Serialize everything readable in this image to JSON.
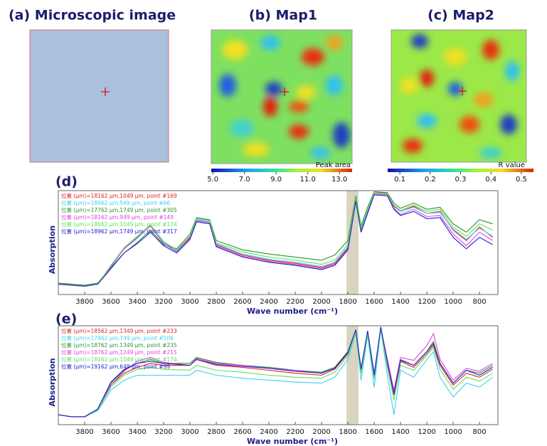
{
  "chart_data": [
    {
      "type": "image",
      "title": "(a) Microscopic image"
    },
    {
      "type": "heatmap",
      "title": "(b) Map1",
      "colorbar_label": "Peak area",
      "clim": [
        4.9,
        13.8
      ],
      "cticks": [
        {
          "value": 5,
          "label": "5.0"
        },
        {
          "value": 7,
          "label": "7.0"
        },
        {
          "value": 9,
          "label": "9.0"
        },
        {
          "value": 11,
          "label": "11.0"
        },
        {
          "value": 13,
          "label": "13.0"
        }
      ]
    },
    {
      "type": "heatmap",
      "title": "(c) Map2",
      "colorbar_label": "R value",
      "clim": [
        0.06,
        0.54
      ],
      "cticks": [
        0.1,
        0.2,
        0.3,
        0.4,
        0.5
      ]
    },
    {
      "type": "line",
      "panel_label": "(d)",
      "xlabel": "Wave number (cm⁻¹)",
      "ylabel": "Absorption",
      "xlim": [
        4000,
        660
      ],
      "ylim": [
        0,
        1
      ],
      "xticks": [
        3800,
        3600,
        3400,
        3200,
        3000,
        2800,
        2600,
        2400,
        2200,
        2000,
        1800,
        1600,
        1400,
        1200,
        1000,
        800
      ],
      "highlight": [
        1810,
        1720
      ],
      "highlight_color": "#d8d4bf",
      "x": [
        4000,
        3800,
        3700,
        3600,
        3500,
        3400,
        3300,
        3200,
        3100,
        3000,
        2950,
        2850,
        2800,
        2600,
        2400,
        2200,
        2000,
        1900,
        1800,
        1740,
        1700,
        1650,
        1600,
        1500,
        1450,
        1400,
        1300,
        1200,
        1100,
        1000,
        900,
        800,
        700
      ],
      "series": [
        {
          "name": "位置 (μm)=18162 μm,1049 μm, point #169",
          "color": "#e02020",
          "values": [
            0.1,
            0.08,
            0.1,
            0.28,
            0.45,
            0.55,
            0.66,
            0.5,
            0.42,
            0.55,
            0.72,
            0.7,
            0.48,
            0.38,
            0.33,
            0.3,
            0.26,
            0.3,
            0.45,
            0.92,
            0.62,
            0.8,
            0.98,
            0.98,
            0.85,
            0.8,
            0.85,
            0.78,
            0.8,
            0.62,
            0.52,
            0.65,
            0.55
          ]
        },
        {
          "name": "位置 (μm)=18062 μm,549 μm, point #66",
          "color": "#3fcff0",
          "values": [
            0.1,
            0.08,
            0.1,
            0.27,
            0.44,
            0.54,
            0.67,
            0.5,
            0.42,
            0.56,
            0.72,
            0.7,
            0.49,
            0.39,
            0.34,
            0.31,
            0.27,
            0.31,
            0.46,
            0.93,
            0.63,
            0.81,
            0.98,
            0.97,
            0.86,
            0.8,
            0.84,
            0.78,
            0.79,
            0.63,
            0.53,
            0.64,
            0.56
          ]
        },
        {
          "name": "位置 (μm)=17762 μm,1749 μm, point #305",
          "color": "#2a962a",
          "values": [
            0.11,
            0.09,
            0.11,
            0.26,
            0.4,
            0.5,
            0.62,
            0.48,
            0.44,
            0.58,
            0.74,
            0.72,
            0.52,
            0.43,
            0.39,
            0.36,
            0.33,
            0.38,
            0.52,
            0.95,
            0.66,
            0.84,
            0.99,
            0.98,
            0.88,
            0.83,
            0.88,
            0.82,
            0.84,
            0.68,
            0.6,
            0.72,
            0.68
          ]
        },
        {
          "name": "位置 (μm)=18162 μm,949 μm, point #149",
          "color": "#e040e0",
          "values": [
            0.1,
            0.08,
            0.1,
            0.27,
            0.44,
            0.55,
            0.66,
            0.49,
            0.41,
            0.54,
            0.71,
            0.69,
            0.47,
            0.37,
            0.32,
            0.29,
            0.25,
            0.29,
            0.44,
            0.91,
            0.6,
            0.79,
            0.97,
            0.96,
            0.83,
            0.77,
            0.82,
            0.75,
            0.76,
            0.58,
            0.47,
            0.6,
            0.52
          ]
        },
        {
          "name": "位置 (μm)=18662 μm,1049 μm, point #174",
          "color": "#5ee05e",
          "values": [
            0.1,
            0.08,
            0.1,
            0.28,
            0.45,
            0.56,
            0.67,
            0.51,
            0.43,
            0.56,
            0.73,
            0.71,
            0.5,
            0.41,
            0.36,
            0.33,
            0.29,
            0.33,
            0.48,
            0.93,
            0.64,
            0.82,
            0.98,
            0.97,
            0.86,
            0.81,
            0.86,
            0.8,
            0.82,
            0.65,
            0.56,
            0.68,
            0.62
          ]
        },
        {
          "name": "位置 (μm)=18962 μm,1749 μm, point #317",
          "color": "#2020d0",
          "values": [
            0.1,
            0.08,
            0.1,
            0.25,
            0.4,
            0.49,
            0.6,
            0.47,
            0.4,
            0.53,
            0.7,
            0.68,
            0.46,
            0.36,
            0.31,
            0.28,
            0.24,
            0.28,
            0.43,
            0.9,
            0.6,
            0.78,
            0.96,
            0.95,
            0.82,
            0.76,
            0.8,
            0.73,
            0.74,
            0.55,
            0.44,
            0.55,
            0.48
          ]
        }
      ]
    },
    {
      "type": "line",
      "panel_label": "(e)",
      "xlabel": "Wave number (cm⁻¹)",
      "ylabel": "Absorption",
      "xlim": [
        4000,
        660
      ],
      "ylim": [
        0,
        1
      ],
      "xticks": [
        3800,
        3600,
        3400,
        3200,
        3000,
        2800,
        2600,
        2400,
        2200,
        2000,
        1800,
        1600,
        1400,
        1200,
        1000,
        800
      ],
      "highlight": [
        1810,
        1720
      ],
      "highlight_color": "#d8d4bf",
      "x": [
        4000,
        3900,
        3800,
        3700,
        3600,
        3500,
        3400,
        3300,
        3200,
        3000,
        2950,
        2800,
        2600,
        2400,
        2200,
        2000,
        1900,
        1800,
        1740,
        1700,
        1650,
        1600,
        1550,
        1500,
        1450,
        1400,
        1300,
        1200,
        1150,
        1100,
        1000,
        900,
        800,
        700
      ],
      "series": [
        {
          "name": "位置 (μm)=18562 μm,1349 μm, point #233",
          "color": "#e02020",
          "values": [
            0.1,
            0.08,
            0.08,
            0.15,
            0.4,
            0.52,
            0.58,
            0.62,
            0.6,
            0.6,
            0.66,
            0.6,
            0.58,
            0.55,
            0.52,
            0.5,
            0.56,
            0.72,
            0.95,
            0.55,
            0.93,
            0.5,
            0.98,
            0.62,
            0.3,
            0.64,
            0.58,
            0.72,
            0.8,
            0.6,
            0.4,
            0.52,
            0.48,
            0.56
          ]
        },
        {
          "name": "位置 (μm)=17862 μm,749 μm, point #106",
          "color": "#3fcff0",
          "values": [
            0.1,
            0.08,
            0.08,
            0.14,
            0.35,
            0.45,
            0.5,
            0.5,
            0.5,
            0.5,
            0.55,
            0.5,
            0.47,
            0.45,
            0.43,
            0.42,
            0.48,
            0.66,
            0.93,
            0.45,
            0.9,
            0.38,
            0.96,
            0.5,
            0.1,
            0.55,
            0.48,
            0.66,
            0.74,
            0.48,
            0.28,
            0.42,
            0.38,
            0.48
          ]
        },
        {
          "name": "位置 (μm)=18762 μm,1349 μm, point #235",
          "color": "#2a962a",
          "values": [
            0.1,
            0.08,
            0.08,
            0.16,
            0.42,
            0.55,
            0.62,
            0.66,
            0.62,
            0.62,
            0.68,
            0.63,
            0.6,
            0.58,
            0.55,
            0.53,
            0.58,
            0.74,
            0.96,
            0.57,
            0.94,
            0.52,
            0.98,
            0.64,
            0.33,
            0.66,
            0.6,
            0.74,
            0.84,
            0.62,
            0.42,
            0.55,
            0.52,
            0.6
          ]
        },
        {
          "name": "位置 (μm)=18762 μm,1249 μm, point #215",
          "color": "#e040e0",
          "values": [
            0.1,
            0.08,
            0.08,
            0.15,
            0.4,
            0.54,
            0.64,
            0.68,
            0.63,
            0.6,
            0.67,
            0.62,
            0.6,
            0.57,
            0.55,
            0.52,
            0.57,
            0.73,
            0.95,
            0.56,
            0.94,
            0.52,
            0.98,
            0.66,
            0.35,
            0.68,
            0.65,
            0.8,
            0.92,
            0.66,
            0.45,
            0.57,
            0.54,
            0.62
          ]
        },
        {
          "name": "位置 (μm)=18162 μm,1049 μm, point #174",
          "color": "#5ee05e",
          "values": [
            0.1,
            0.08,
            0.08,
            0.15,
            0.38,
            0.5,
            0.56,
            0.58,
            0.56,
            0.55,
            0.6,
            0.55,
            0.53,
            0.5,
            0.48,
            0.47,
            0.53,
            0.7,
            0.94,
            0.52,
            0.92,
            0.46,
            0.97,
            0.58,
            0.25,
            0.6,
            0.55,
            0.7,
            0.78,
            0.56,
            0.36,
            0.48,
            0.44,
            0.52
          ]
        },
        {
          "name": "位置 (μm)=19162 μm,649 μm, point #99",
          "color": "#2020d0",
          "values": [
            0.1,
            0.08,
            0.08,
            0.16,
            0.43,
            0.56,
            0.62,
            0.64,
            0.62,
            0.6,
            0.66,
            0.61,
            0.59,
            0.57,
            0.54,
            0.52,
            0.57,
            0.73,
            0.96,
            0.56,
            0.95,
            0.5,
            0.99,
            0.63,
            0.31,
            0.65,
            0.6,
            0.74,
            0.82,
            0.62,
            0.42,
            0.55,
            0.5,
            0.58
          ]
        }
      ]
    }
  ]
}
